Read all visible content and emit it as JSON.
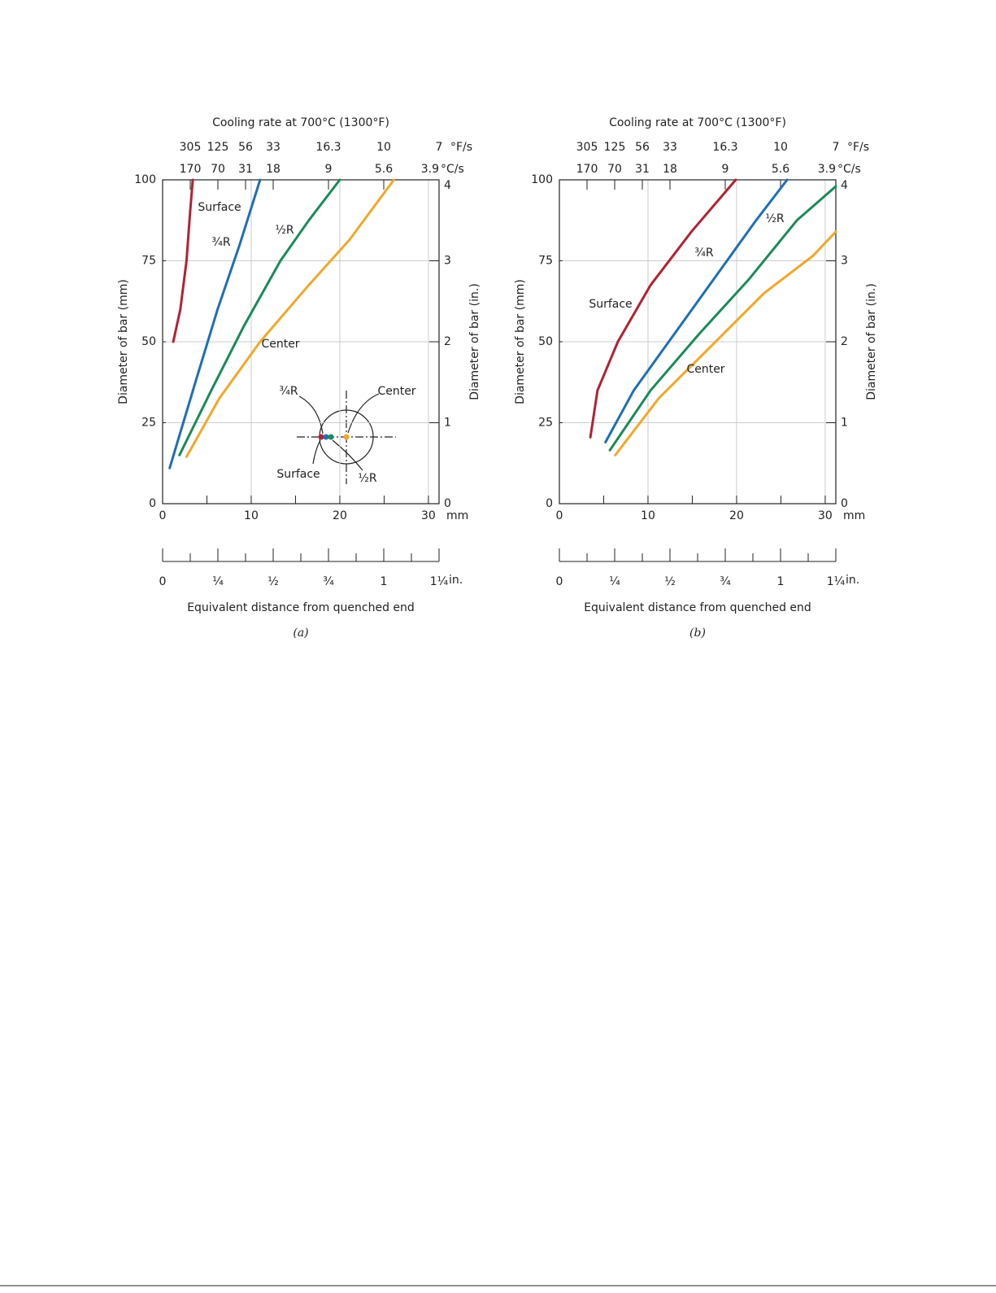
{
  "chart_data": [
    {
      "type": "line",
      "caption": "(a)",
      "top_axis_label": "Cooling rate at 700°C (1300°F)",
      "top_unit_F": "°F/s",
      "top_unit_C": "°C/s",
      "ylabel": "Diameter of bar (mm)",
      "y2label": "Diameter of bar (in.)",
      "xlabel": "Equivalent distance from quenched end",
      "x_unit": "mm",
      "x2_unit": "in.",
      "xlim": [
        0,
        31.2
      ],
      "xticks": [
        0,
        10,
        20,
        30
      ],
      "xminorticks": [
        5,
        15,
        25
      ],
      "ylim": [
        0,
        100
      ],
      "yticks": [
        0,
        25,
        50,
        75,
        100
      ],
      "y2lim": [
        0,
        4
      ],
      "y2ticks": [
        0,
        1,
        2,
        3,
        4
      ],
      "x2lim": [
        0,
        1.25
      ],
      "x2ticks": [
        0,
        {
          "value": 0.25,
          "label": "¼"
        },
        {
          "value": 0.5,
          "label": "½"
        },
        {
          "value": 0.75,
          "label": "¾"
        },
        1,
        {
          "value": 1.25,
          "label": "1¼"
        }
      ],
      "x2minorticks": [
        0.125,
        0.375,
        0.625,
        0.875,
        1.125
      ],
      "x3ticks": [
        {
          "value": 0.125,
          "label": "305"
        },
        {
          "value": 0.25,
          "label": "125"
        },
        {
          "value": 0.375,
          "label": "56"
        },
        {
          "value": 0.5,
          "label": "33"
        },
        {
          "value": 0.75,
          "label": "16.3"
        },
        {
          "value": 1,
          "label": "10"
        },
        {
          "value": 1.25,
          "label": "7"
        }
      ],
      "x4ticks": [
        {
          "value": 0.125,
          "label": "170"
        },
        {
          "value": 0.25,
          "label": "70"
        },
        {
          "value": 0.375,
          "label": "31"
        },
        {
          "value": 0.5,
          "label": "18"
        },
        {
          "value": 0.75,
          "label": "9"
        },
        {
          "value": 1,
          "label": "5.6"
        },
        {
          "value": 1.25,
          "label": "3.9"
        }
      ],
      "grid": true,
      "series": [
        {
          "name": "Surface",
          "color": "#b22234",
          "x": [
            1.2,
            2.0,
            2.7,
            3.1,
            3.4
          ],
          "values": [
            50,
            60,
            75,
            90,
            100
          ]
        },
        {
          "name": "¾R",
          "color": "#1f6fb2",
          "x": [
            0.8,
            3.7,
            6.2,
            8.7,
            11.0
          ],
          "values": [
            11,
            37.5,
            60,
            80,
            100
          ]
        },
        {
          "name": "½R",
          "color": "#1b8a5a",
          "x": [
            1.9,
            5.5,
            9.2,
            13.3,
            16.5,
            20.0
          ],
          "values": [
            15,
            35,
            55,
            75,
            87.5,
            100
          ]
        },
        {
          "name": "Center",
          "color": "#f0a82a",
          "x": [
            2.7,
            6.4,
            11.0,
            16.5,
            21.1,
            26.1
          ],
          "values": [
            14.5,
            32.5,
            50,
            67.5,
            81.5,
            100
          ]
        }
      ],
      "inset_labels": [
        "¾R",
        "Center",
        "Surface",
        "½R"
      ]
    },
    {
      "type": "line",
      "caption": "(b)",
      "top_axis_label": "Cooling rate at 700°C (1300°F)",
      "top_unit_F": "°F/s",
      "top_unit_C": "°C/s",
      "ylabel": "Diameter of bar (mm)",
      "y2label": "Diameter of bar (in.)",
      "xlabel": "Equivalent distance from quenched end",
      "x_unit": "mm",
      "x2_unit": "in.",
      "xlim": [
        0,
        31.2
      ],
      "xticks": [
        0,
        10,
        20,
        30
      ],
      "xminorticks": [
        5,
        15,
        25
      ],
      "ylim": [
        0,
        100
      ],
      "yticks": [
        0,
        25,
        50,
        75,
        100
      ],
      "y2lim": [
        0,
        4
      ],
      "y2ticks": [
        0,
        1,
        2,
        3,
        4
      ],
      "x2lim": [
        0,
        1.25
      ],
      "x2ticks": [
        0,
        {
          "value": 0.25,
          "label": "¼"
        },
        {
          "value": 0.5,
          "label": "½"
        },
        {
          "value": 0.75,
          "label": "¾"
        },
        1,
        {
          "value": 1.25,
          "label": "1¼"
        }
      ],
      "x2minorticks": [
        0.125,
        0.375,
        0.625,
        0.875,
        1.125
      ],
      "x3ticks": [
        {
          "value": 0.125,
          "label": "305"
        },
        {
          "value": 0.25,
          "label": "125"
        },
        {
          "value": 0.375,
          "label": "56"
        },
        {
          "value": 0.5,
          "label": "33"
        },
        {
          "value": 0.75,
          "label": "16.3"
        },
        {
          "value": 1,
          "label": "10"
        },
        {
          "value": 1.25,
          "label": "7"
        }
      ],
      "x4ticks": [
        {
          "value": 0.125,
          "label": "170"
        },
        {
          "value": 0.25,
          "label": "70"
        },
        {
          "value": 0.375,
          "label": "31"
        },
        {
          "value": 0.5,
          "label": "18"
        },
        {
          "value": 0.75,
          "label": "9"
        },
        {
          "value": 1,
          "label": "5.6"
        },
        {
          "value": 1.25,
          "label": "3.9"
        }
      ],
      "grid": true,
      "series": [
        {
          "name": "Surface",
          "color": "#b22234",
          "x": [
            3.5,
            4.3,
            6.6,
            10.3,
            14.9,
            19.9
          ],
          "values": [
            20.5,
            35,
            50,
            67.5,
            84,
            100
          ]
        },
        {
          "name": "¾R",
          "color": "#1f6fb2",
          "x": [
            5.2,
            8.4,
            13.0,
            17.6,
            22.2,
            25.7
          ],
          "values": [
            19,
            35,
            52.5,
            70,
            87.5,
            100
          ]
        },
        {
          "name": "½R",
          "color": "#1b8a5a",
          "x": [
            5.7,
            10.3,
            15.8,
            21.3,
            26.8,
            31.2
          ],
          "values": [
            16.5,
            35,
            52.5,
            69,
            87.5,
            98
          ]
        },
        {
          "name": "Center",
          "color": "#f0a82a",
          "x": [
            6.3,
            11.2,
            16.7,
            23.1,
            28.6,
            31.2
          ],
          "values": [
            15,
            32.5,
            47.5,
            65,
            76.5,
            84
          ]
        }
      ]
    }
  ]
}
